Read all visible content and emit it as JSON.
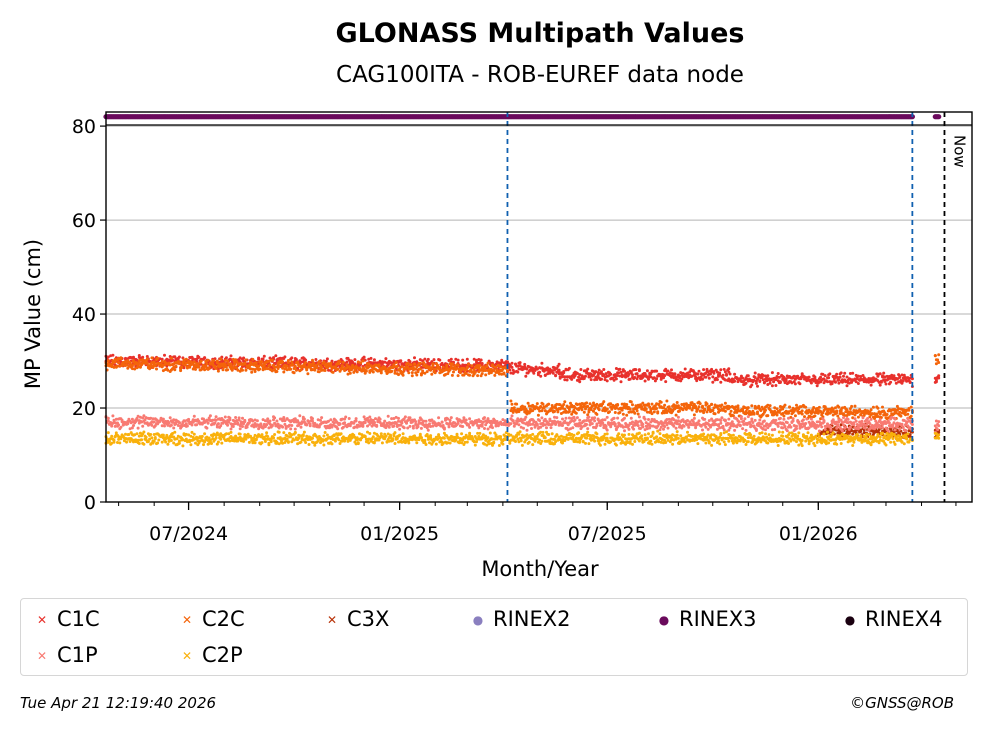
{
  "chart_data": {
    "type": "scatter",
    "title": "GLONASS Multipath Values",
    "subtitle": "CAG100ITA - ROB-EUREF data node",
    "xlabel": "Month/Year",
    "ylabel": "MP Value (cm)",
    "x_range": [
      "2024-04-20",
      "2026-05-15"
    ],
    "ylim": [
      0,
      83
    ],
    "y_ticks": [
      0,
      20,
      40,
      60,
      80
    ],
    "x_ticks": [
      {
        "date": "2024-07-01",
        "label": "07/2024"
      },
      {
        "date": "2025-01-01",
        "label": "01/2025"
      },
      {
        "date": "2025-07-01",
        "label": "07/2025"
      },
      {
        "date": "2026-01-01",
        "label": "01/2026"
      }
    ],
    "grid": "horizontal",
    "now_label": "Now",
    "now_date": "2026-04-21",
    "reference_lines": [
      "2025-04-05",
      "2026-03-24"
    ],
    "series": [
      {
        "name": "C1C",
        "color": "#e8312c",
        "marker": "x",
        "segments": [
          {
            "start": "2024-04-20",
            "end": "2025-04-05",
            "from": 30,
            "to": 29
          },
          {
            "start": "2025-04-05",
            "end": "2025-05-20",
            "from": 28.5,
            "to": 28
          },
          {
            "start": "2025-05-20",
            "end": "2025-10-15",
            "from": 27,
            "to": 27
          },
          {
            "start": "2025-10-15",
            "end": "2026-03-24",
            "from": 26,
            "to": 26
          },
          {
            "start": "2026-04-13",
            "end": "2026-04-16",
            "from": 26.5,
            "to": 26.5
          }
        ]
      },
      {
        "name": "C2C",
        "color": "#f4640a",
        "marker": "x",
        "segments": [
          {
            "start": "2024-04-20",
            "end": "2025-04-05",
            "from": 29.5,
            "to": 28
          },
          {
            "start": "2025-04-08",
            "end": "2025-10-15",
            "from": 20,
            "to": 20
          },
          {
            "start": "2025-10-15",
            "end": "2026-03-24",
            "from": 19.5,
            "to": 19
          },
          {
            "start": "2026-04-13",
            "end": "2026-04-16",
            "from": 30.5,
            "to": 30.5
          }
        ]
      },
      {
        "name": "C3X",
        "color": "#b83208",
        "marker": "x",
        "segments": [
          {
            "start": "2026-01-01",
            "end": "2026-03-24",
            "from": 15,
            "to": 15
          },
          {
            "start": "2026-04-13",
            "end": "2026-04-16",
            "from": 15,
            "to": 15
          }
        ]
      },
      {
        "name": "RINEX2",
        "color": "#8a7fbf",
        "marker": "dot",
        "segments": []
      },
      {
        "name": "RINEX3",
        "color": "#6a0a5c",
        "marker": "dot",
        "segments": [
          {
            "start": "2024-04-20",
            "end": "2026-03-24",
            "from": 82,
            "to": 82
          },
          {
            "start": "2026-04-13",
            "end": "2026-04-16",
            "from": 82,
            "to": 82
          }
        ]
      },
      {
        "name": "RINEX4",
        "color": "#1a0010",
        "marker": "dot",
        "segments": []
      },
      {
        "name": "C1P",
        "color": "#f87a72",
        "marker": "x",
        "segments": [
          {
            "start": "2024-04-20",
            "end": "2026-03-24",
            "from": 17,
            "to": 16.5
          },
          {
            "start": "2026-04-13",
            "end": "2026-04-16",
            "from": 16,
            "to": 16
          }
        ]
      },
      {
        "name": "C2P",
        "color": "#f9b10c",
        "marker": "x",
        "segments": [
          {
            "start": "2024-04-20",
            "end": "2026-03-24",
            "from": 13.5,
            "to": 13.5
          },
          {
            "start": "2026-04-13",
            "end": "2026-04-16",
            "from": 14,
            "to": 14
          }
        ]
      }
    ]
  },
  "legend": [
    {
      "label": "C1C",
      "color": "#e8312c",
      "symbol": "✕"
    },
    {
      "label": "C2C",
      "color": "#f4640a",
      "symbol": "✕"
    },
    {
      "label": "C3X",
      "color": "#b83208",
      "symbol": "✕"
    },
    {
      "label": "RINEX2",
      "color": "#8a7fbf",
      "symbol": "●"
    },
    {
      "label": "RINEX3",
      "color": "#6a0a5c",
      "symbol": "●"
    },
    {
      "label": "RINEX4",
      "color": "#1a0010",
      "symbol": "●"
    },
    {
      "label": "C1P",
      "color": "#f87a72",
      "symbol": "✕"
    },
    {
      "label": "C2P",
      "color": "#f9b10c",
      "symbol": "✕"
    }
  ],
  "footer": {
    "timestamp": "Tue Apr 21 12:19:40 2026",
    "copyright": "©GNSS@ROB"
  }
}
